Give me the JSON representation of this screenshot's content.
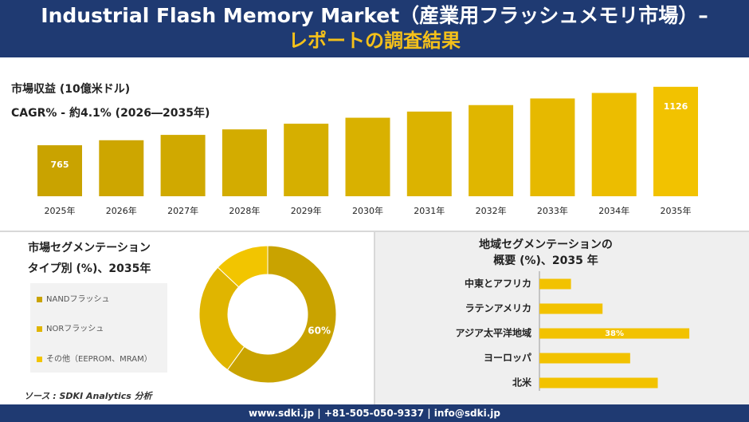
{
  "header": {
    "title_line1": "Industrial Flash Memory Market（産業用フラッシュメモリ市場）–",
    "title_line2": "レポートの調査結果"
  },
  "revenue": {
    "label": "市場収益 (10億米ドル)",
    "cagr": "CAGR% - 約4.1% (2026―2035年)"
  },
  "segment": {
    "title_line1": "市場セグメンテーション",
    "title_line2": "タイプ別 (%)、2035年",
    "legend": [
      "NANDフラッシュ",
      "NORフラッシュ",
      "その他（EEPROM、MRAM）"
    ]
  },
  "region": {
    "title_line1": "地域セグメンテーションの",
    "title_line2": "概要 (%)、2035 年"
  },
  "source": "ソース : SDKI Analytics 分析",
  "footer": "www.sdki.jp | +81-505-050-9337 | info@sdki.jp",
  "colors": {
    "navy": "#1f3a72",
    "gold_dark": "#c9a300",
    "gold": "#e0b500",
    "gold_light": "#f2c500",
    "accent_yellow": "#f5c11a"
  },
  "chart_data": [
    {
      "type": "bar",
      "categories": [
        "2025年",
        "2026年",
        "2027年",
        "2028年",
        "2029年",
        "2030年",
        "2031年",
        "2032年",
        "2033年",
        "2034年",
        "2035年"
      ],
      "values": [
        765,
        796,
        829,
        863,
        898,
        935,
        973,
        1013,
        1054,
        1088,
        1126
      ],
      "data_labels": [
        "765",
        "",
        "",
        "",
        "",
        "",
        "",
        "",
        "",
        "",
        "1126"
      ],
      "ylim": [
        450,
        1130
      ]
    },
    {
      "type": "pie",
      "variant": "donut",
      "labels": [
        "NANDフラッシュ",
        "NORフラッシュ",
        "その他（EEPROM、MRAM）"
      ],
      "values": [
        60,
        27,
        13
      ],
      "data_labels": [
        "60%",
        "",
        ""
      ],
      "colors": [
        "#c9a300",
        "#e0b500",
        "#f2c500"
      ]
    },
    {
      "type": "bar",
      "orientation": "horizontal",
      "categories": [
        "中東とアフリカ",
        "ラテンアメリカ",
        "アジア太平洋地域",
        "ヨーロッパ",
        "北米"
      ],
      "values": [
        8,
        16,
        38,
        23,
        30
      ],
      "data_labels": [
        "",
        "",
        "38%",
        "",
        ""
      ],
      "xlim": [
        0,
        40
      ]
    }
  ]
}
